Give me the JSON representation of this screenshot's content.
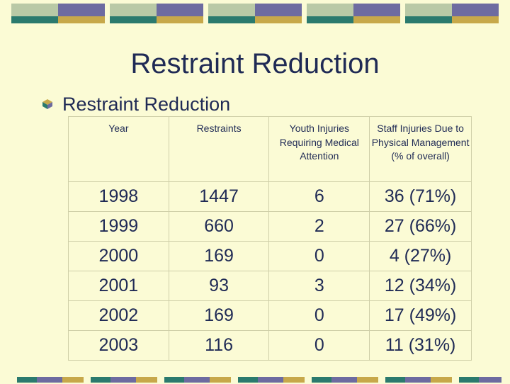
{
  "colors": {
    "background": "#fbfbd5",
    "text": "#1f2a55",
    "deco_teal": "#2b7a6e",
    "deco_purple": "#6d6ba0",
    "deco_gold": "#c7a84a",
    "deco_sage": "#b9c9a6"
  },
  "title": "Restraint Reduction",
  "bullet": {
    "icon": "bullet-cube-icon",
    "text": "Restraint Reduction"
  },
  "table": {
    "headers": [
      "Year",
      "Restraints",
      "Youth Injuries Requiring Medical Attention",
      "Staff Injuries Due to Physical Management (% of overall)"
    ],
    "rows": [
      [
        "1998",
        "1447",
        "6",
        "36 (71%)"
      ],
      [
        "1999",
        "660",
        "2",
        "27 (66%)"
      ],
      [
        "2000",
        "169",
        "0",
        "4 (27%)"
      ],
      [
        "2001",
        "93",
        "3",
        "12 (34%)"
      ],
      [
        "2002",
        "169",
        "0",
        "17 (49%)"
      ],
      [
        "2003",
        "116",
        "0",
        "11 (31%)"
      ]
    ]
  }
}
